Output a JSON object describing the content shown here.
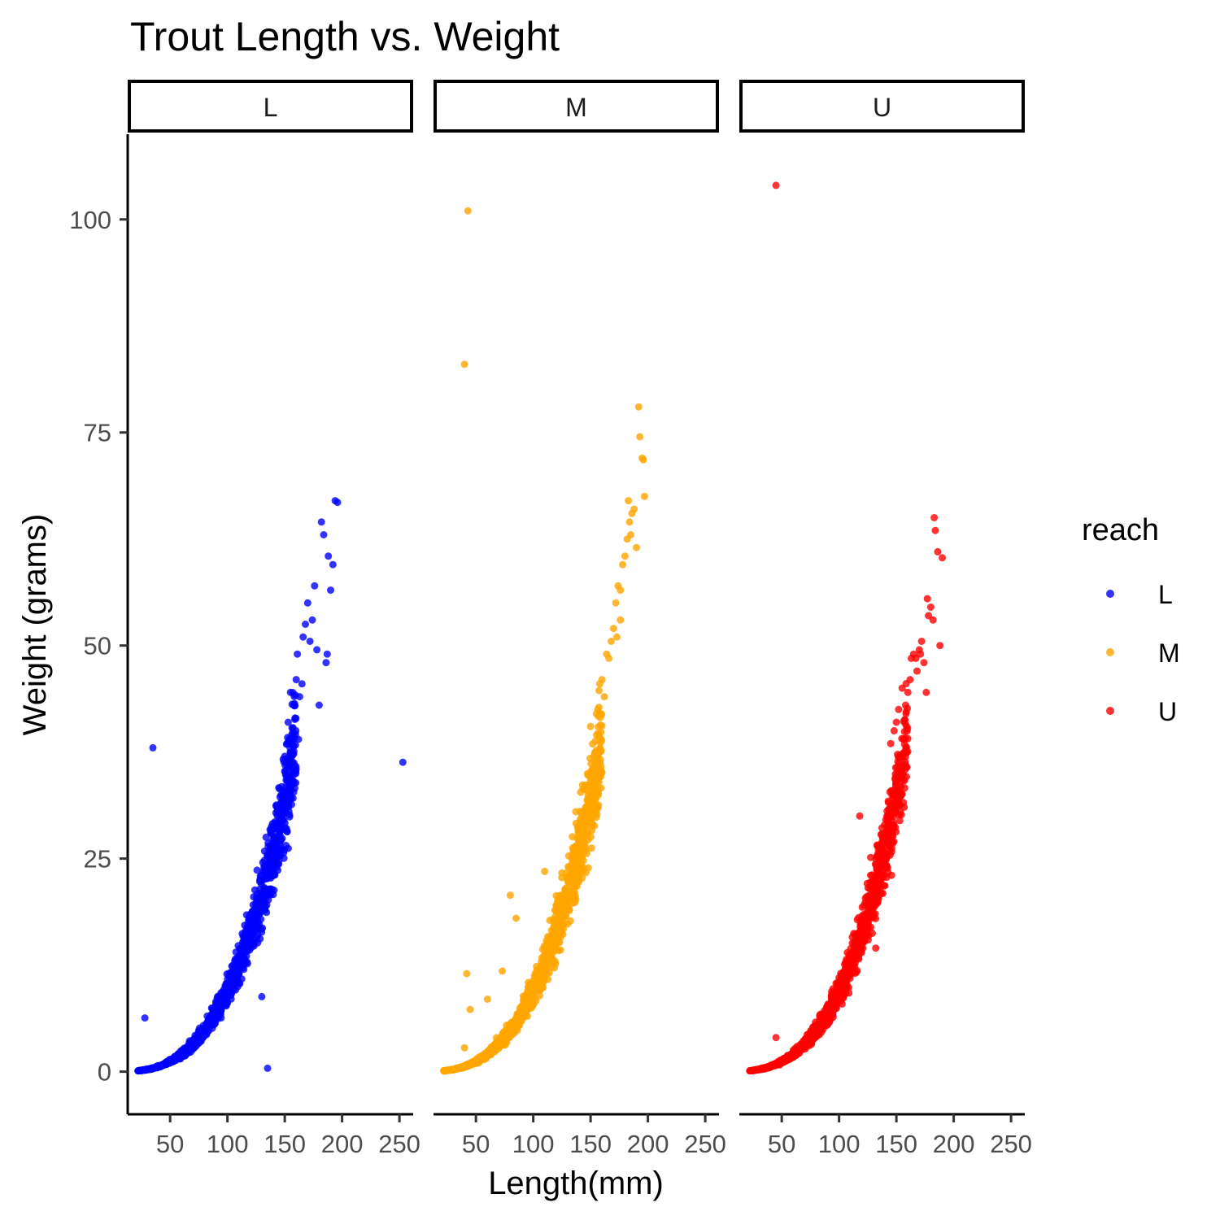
{
  "chart_data": {
    "type": "scatter",
    "title": "Trout Length vs. Weight",
    "xlabel": "Length(mm)",
    "ylabel": "Weight (grams)",
    "xlim": [
      13,
      262
    ],
    "ylim": [
      -5,
      110
    ],
    "x_ticks": [
      50,
      100,
      150,
      200,
      250
    ],
    "y_ticks": [
      0,
      25,
      50,
      75,
      100
    ],
    "grid": false,
    "facets": [
      "L",
      "M",
      "U"
    ],
    "legend": {
      "title": "reach",
      "position": "right",
      "entries": [
        {
          "label": "L",
          "color": "#0000FF"
        },
        {
          "label": "M",
          "color": "#FFA500"
        },
        {
          "label": "U",
          "color": "#FF0000"
        }
      ]
    },
    "trend_note": "dense cloud following weight ≈ 9.5e-6 × length^3 for lengths 20–160 mm; explicit points below",
    "series": [
      {
        "name": "L",
        "color": "#0000FF",
        "trend_range": [
          22,
          160
        ],
        "points": [
          [
            22,
            0.1
          ],
          [
            28,
            6.3
          ],
          [
            35,
            38.0
          ],
          [
            135,
            0.4
          ],
          [
            130,
            8.8
          ],
          [
            253,
            36.3
          ],
          [
            150,
            37.0
          ],
          [
            153,
            41.0
          ],
          [
            155,
            44.5
          ],
          [
            158,
            43.0
          ],
          [
            160,
            46.0
          ],
          [
            161,
            49.0
          ],
          [
            163,
            44.0
          ],
          [
            165,
            45.5
          ],
          [
            166,
            51.0
          ],
          [
            168,
            52.5
          ],
          [
            170,
            55.0
          ],
          [
            172,
            50.5
          ],
          [
            174,
            53.0
          ],
          [
            176,
            57.0
          ],
          [
            178,
            49.5
          ],
          [
            180,
            43.0
          ],
          [
            182,
            64.5
          ],
          [
            184,
            63.0
          ],
          [
            186,
            48.0
          ],
          [
            187,
            49.0
          ],
          [
            188,
            60.5
          ],
          [
            190,
            56.5
          ],
          [
            192,
            59.5
          ],
          [
            194,
            67.0
          ],
          [
            196,
            66.8
          ],
          [
            148,
            33.0
          ],
          [
            152,
            38.5
          ],
          [
            156,
            39.5
          ],
          [
            159,
            41.5
          ],
          [
            162,
            39.0
          ]
        ]
      },
      {
        "name": "M",
        "color": "#FFA500",
        "trend_range": [
          22,
          160
        ],
        "points": [
          [
            40,
            83.0
          ],
          [
            43,
            101.0
          ],
          [
            45,
            7.3
          ],
          [
            40,
            2.8
          ],
          [
            42,
            11.5
          ],
          [
            80,
            20.7
          ],
          [
            73,
            11.8
          ],
          [
            85,
            18.0
          ],
          [
            110,
            23.5
          ],
          [
            122,
            14.2
          ],
          [
            68,
            4.0
          ],
          [
            60,
            8.5
          ],
          [
            150,
            40.5
          ],
          [
            155,
            42.0
          ],
          [
            158,
            45.5
          ],
          [
            160,
            46.0
          ],
          [
            162,
            44.0
          ],
          [
            164,
            49.0
          ],
          [
            166,
            48.5
          ],
          [
            168,
            50.5
          ],
          [
            170,
            52.0
          ],
          [
            172,
            55.0
          ],
          [
            174,
            57.0
          ],
          [
            176,
            53.0
          ],
          [
            178,
            59.5
          ],
          [
            180,
            60.5
          ],
          [
            182,
            62.5
          ],
          [
            184,
            64.5
          ],
          [
            186,
            65.5
          ],
          [
            188,
            66.0
          ],
          [
            190,
            61.5
          ],
          [
            192,
            78.0
          ],
          [
            193,
            74.5
          ],
          [
            195,
            72.0
          ],
          [
            196,
            71.8
          ],
          [
            197,
            67.5
          ],
          [
            185,
            63.0
          ],
          [
            183,
            67.0
          ],
          [
            176,
            56.5
          ],
          [
            173,
            51.0
          ]
        ]
      },
      {
        "name": "U",
        "color": "#FF0000",
        "trend_range": [
          22,
          160
        ],
        "points": [
          [
            45,
            104.0
          ],
          [
            45,
            4.0
          ],
          [
            100,
            11.0
          ],
          [
            132,
            14.5
          ],
          [
            118,
            30.0
          ],
          [
            145,
            38.5
          ],
          [
            148,
            40.0
          ],
          [
            150,
            41.0
          ],
          [
            152,
            42.5
          ],
          [
            155,
            45.0
          ],
          [
            158,
            43.0
          ],
          [
            160,
            44.5
          ],
          [
            162,
            46.0
          ],
          [
            163,
            48.5
          ],
          [
            165,
            49.0
          ],
          [
            167,
            48.5
          ],
          [
            170,
            49.5
          ],
          [
            172,
            50.5
          ],
          [
            174,
            48.0
          ],
          [
            176,
            44.5
          ],
          [
            177,
            55.5
          ],
          [
            178,
            53.5
          ],
          [
            180,
            54.5
          ],
          [
            182,
            53.0
          ],
          [
            183,
            65.0
          ],
          [
            184,
            63.5
          ],
          [
            186,
            61.0
          ],
          [
            188,
            50.0
          ],
          [
            190,
            60.3
          ],
          [
            171,
            49.0
          ],
          [
            168,
            47.0
          ]
        ]
      }
    ]
  }
}
